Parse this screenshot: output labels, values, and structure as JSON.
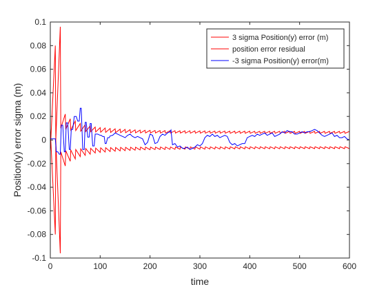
{
  "chart_data": {
    "type": "line",
    "title": "",
    "xlabel": "time",
    "ylabel": "Position(y) error sigma (m)",
    "xlim": [
      0,
      600
    ],
    "ylim": [
      -0.1,
      0.1
    ],
    "xticks": [
      0,
      100,
      200,
      300,
      400,
      500,
      600
    ],
    "xtick_labels": [
      "0",
      "100",
      "200",
      "300",
      "400",
      "500",
      "600"
    ],
    "yticks": [
      -0.1,
      -0.08,
      -0.06,
      -0.04,
      -0.02,
      0,
      0.02,
      0.04,
      0.06,
      0.08,
      0.1
    ],
    "ytick_labels": [
      "-0.1",
      "-0.08",
      "-0.06",
      "-0.04",
      "-0.02",
      "0",
      "0.02",
      "0.04",
      "0.06",
      "0.08",
      "0.1"
    ],
    "grid": false,
    "legend_position": "top-right",
    "series": [
      {
        "name": "3 sigma Position(y) error (m)",
        "color": "#ff0000",
        "x": [
          0,
          1,
          10,
          11,
          20,
          21,
          30,
          31,
          40,
          41,
          50,
          51,
          60,
          61,
          70,
          71,
          80,
          81,
          90,
          91,
          100,
          101,
          110,
          111,
          120,
          121,
          130,
          131,
          140,
          141,
          150,
          151,
          160,
          161,
          170,
          171,
          180,
          181,
          190,
          191,
          200,
          201,
          210,
          211,
          220,
          221,
          230,
          231,
          240,
          241,
          250,
          251,
          260,
          261,
          270,
          271,
          280,
          281,
          290,
          291,
          300,
          301,
          310,
          311,
          320,
          321,
          330,
          331,
          340,
          341,
          350,
          351,
          360,
          361,
          370,
          371,
          380,
          381,
          390,
          391,
          400,
          401,
          410,
          411,
          420,
          421,
          430,
          431,
          440,
          441,
          450,
          451,
          460,
          461,
          470,
          471,
          480,
          481,
          490,
          491,
          500,
          501,
          510,
          511,
          520,
          521,
          530,
          531,
          540,
          541,
          550,
          551,
          560,
          561,
          570,
          571,
          580,
          581,
          590,
          591,
          600
        ],
        "y": [
          0.01,
          0,
          0.08,
          0,
          0.096,
          0.01,
          0.022,
          0.009,
          0.018,
          0.0085,
          0.016,
          0.008,
          0.014,
          0.0075,
          0.013,
          0.0072,
          0.012,
          0.007,
          0.011,
          0.0068,
          0.0105,
          0.0066,
          0.0102,
          0.0065,
          0.0098,
          0.0064,
          0.0095,
          0.0063,
          0.0092,
          0.0062,
          0.009,
          0.0062,
          0.0088,
          0.0061,
          0.0086,
          0.0061,
          0.0084,
          0.006,
          0.0083,
          0.006,
          0.0082,
          0.006,
          0.0081,
          0.006,
          0.008,
          0.0059,
          0.008,
          0.0059,
          0.0079,
          0.0059,
          0.0079,
          0.0059,
          0.0078,
          0.0059,
          0.0078,
          0.0058,
          0.0078,
          0.0058,
          0.0077,
          0.0058,
          0.0077,
          0.0058,
          0.0077,
          0.0058,
          0.0076,
          0.0058,
          0.0076,
          0.0058,
          0.0076,
          0.0058,
          0.0076,
          0.0058,
          0.0075,
          0.0057,
          0.0075,
          0.0057,
          0.0075,
          0.0057,
          0.0075,
          0.0057,
          0.0075,
          0.0057,
          0.0074,
          0.0057,
          0.0074,
          0.0057,
          0.0074,
          0.0057,
          0.0074,
          0.0057,
          0.0074,
          0.0057,
          0.0074,
          0.0057,
          0.0074,
          0.0057,
          0.0073,
          0.0057,
          0.0073,
          0.0057,
          0.0073,
          0.0057,
          0.0073,
          0.0057,
          0.0073,
          0.0057,
          0.0073,
          0.0057,
          0.0073,
          0.0057,
          0.0073,
          0.0057,
          0.0073,
          0.0057,
          0.0073,
          0.0057,
          0.0073,
          0.0057,
          0.0073,
          0.0057,
          0.0073
        ]
      },
      {
        "name": "position error residual",
        "color": "#ff0000",
        "x": [
          0,
          1,
          10,
          11,
          20,
          21,
          30,
          31,
          40,
          41,
          50,
          51,
          60,
          61,
          70,
          71,
          80,
          81,
          90,
          91,
          100,
          101,
          110,
          111,
          120,
          121,
          130,
          131,
          140,
          141,
          150,
          151,
          160,
          161,
          170,
          171,
          180,
          181,
          190,
          191,
          200,
          201,
          210,
          211,
          220,
          221,
          230,
          231,
          240,
          241,
          250,
          251,
          260,
          261,
          270,
          271,
          280,
          281,
          290,
          291,
          300,
          301,
          310,
          311,
          320,
          321,
          330,
          331,
          340,
          341,
          350,
          351,
          360,
          361,
          370,
          371,
          380,
          381,
          390,
          391,
          400,
          401,
          410,
          411,
          420,
          421,
          430,
          431,
          440,
          441,
          450,
          451,
          460,
          461,
          470,
          471,
          480,
          481,
          490,
          491,
          500,
          501,
          510,
          511,
          520,
          521,
          530,
          531,
          540,
          541,
          550,
          551,
          560,
          561,
          570,
          571,
          580,
          581,
          590,
          591,
          600
        ],
        "y": [
          -0.01,
          0,
          -0.08,
          0,
          -0.096,
          -0.01,
          -0.022,
          -0.009,
          -0.018,
          -0.0085,
          -0.016,
          -0.008,
          -0.014,
          -0.0075,
          -0.013,
          -0.0072,
          -0.012,
          -0.007,
          -0.011,
          -0.0068,
          -0.0105,
          -0.0066,
          -0.0102,
          -0.0065,
          -0.0098,
          -0.0064,
          -0.0095,
          -0.0063,
          -0.0092,
          -0.0062,
          -0.009,
          -0.0062,
          -0.0088,
          -0.0061,
          -0.0086,
          -0.0061,
          -0.0084,
          -0.006,
          -0.0083,
          -0.006,
          -0.0082,
          -0.006,
          -0.0081,
          -0.006,
          -0.008,
          -0.0059,
          -0.008,
          -0.0059,
          -0.0079,
          -0.0059,
          -0.0079,
          -0.0059,
          -0.0078,
          -0.0059,
          -0.0078,
          -0.0058,
          -0.0078,
          -0.0058,
          -0.0077,
          -0.0058,
          -0.0077,
          -0.0058,
          -0.0077,
          -0.0058,
          -0.0076,
          -0.0058,
          -0.0076,
          -0.0058,
          -0.0076,
          -0.0058,
          -0.0076,
          -0.0058,
          -0.0075,
          -0.0057,
          -0.0075,
          -0.0057,
          -0.0075,
          -0.0057,
          -0.0075,
          -0.0057,
          -0.0075,
          -0.0057,
          -0.0074,
          -0.0057,
          -0.0074,
          -0.0057,
          -0.0074,
          -0.0057,
          -0.0074,
          -0.0057,
          -0.0074,
          -0.0057,
          -0.0074,
          -0.0057,
          -0.0074,
          -0.0057,
          -0.0073,
          -0.0057,
          -0.0073,
          -0.0057,
          -0.0073,
          -0.0057,
          -0.0073,
          -0.0057,
          -0.0073,
          -0.0057,
          -0.0073,
          -0.0057,
          -0.0073,
          -0.0057,
          -0.0073,
          -0.0057,
          -0.0073,
          -0.0057,
          -0.0073,
          -0.0057,
          -0.0073,
          -0.0057,
          -0.0073,
          -0.0057,
          -0.0073
        ]
      },
      {
        "name": "-3 sigma Position(y) error(m)",
        "color": "#0000ff",
        "x": [
          0,
          2,
          5,
          8,
          10,
          12,
          15,
          18,
          20,
          22,
          25,
          28,
          30,
          32,
          35,
          38,
          40,
          42,
          45,
          48,
          52,
          55,
          58,
          60,
          62,
          65,
          68,
          70,
          72,
          75,
          78,
          80,
          82,
          85,
          88,
          90,
          95,
          100,
          102,
          105,
          108,
          110,
          112,
          115,
          118,
          120,
          125,
          130,
          135,
          140,
          145,
          150,
          155,
          160,
          165,
          170,
          175,
          180,
          185,
          190,
          195,
          200,
          205,
          210,
          215,
          220,
          225,
          230,
          235,
          240,
          242,
          245,
          250,
          255,
          260,
          265,
          270,
          275,
          280,
          285,
          290,
          295,
          300,
          305,
          310,
          315,
          320,
          325,
          330,
          335,
          340,
          345,
          350,
          355,
          360,
          365,
          370,
          375,
          380,
          385,
          390,
          395,
          400,
          405,
          410,
          415,
          420,
          425,
          430,
          435,
          440,
          445,
          450,
          455,
          460,
          465,
          470,
          475,
          480,
          485,
          490,
          495,
          500,
          505,
          510,
          515,
          520,
          525,
          530,
          535,
          540,
          545,
          550,
          555,
          560,
          565,
          570,
          575,
          580,
          585,
          590,
          595,
          600
        ],
        "y": [
          0.001,
          0.001,
          0.001,
          0.001,
          0.001,
          -0.01,
          -0.01,
          -0.012,
          -0.012,
          0.0125,
          0.0125,
          -0.01,
          -0.01,
          0.0145,
          0.0145,
          -0.008,
          -0.008,
          0.009,
          0.009,
          0.02,
          0.02,
          0.016,
          0.016,
          0.027,
          0.027,
          -0.008,
          -0.008,
          0.015,
          0.015,
          0.0025,
          0.0025,
          0.014,
          0.014,
          -0.005,
          -0.005,
          0.005,
          0.005,
          0.004,
          0.004,
          0.003,
          0.003,
          -0.003,
          -0.003,
          0.002,
          0.002,
          0.0035,
          0.004,
          0.006,
          0.005,
          0.004,
          0.003,
          0.002,
          0.004,
          0.005,
          0.003,
          0.002,
          0.003,
          0.002,
          0.001,
          -0.004,
          -0.002,
          0.005,
          0.004,
          -0.003,
          -0.002,
          0.003,
          0.005,
          0.004,
          0.006,
          0.007,
          0.0085,
          -0.004,
          -0.003,
          -0.006,
          -0.005,
          -0.007,
          -0.007,
          -0.006,
          -0.008,
          -0.007,
          -0.006,
          -0.004,
          -0.005,
          -0.003,
          0.002,
          0.004,
          0.003,
          0.005,
          0.003,
          0.004,
          0.002,
          0.003,
          0.004,
          0.003,
          -0.002,
          -0.004,
          -0.003,
          -0.005,
          -0.004,
          -0.003,
          -0.003,
          0.002,
          0.003,
          0.004,
          0.003,
          0.005,
          0.004,
          0.005,
          0.006,
          0.004,
          0.005,
          0.006,
          0.003,
          0.004,
          0.005,
          0.007,
          0.006,
          0.008,
          0.007,
          0.007,
          0.005,
          0.005,
          0.006,
          0.007,
          0.006,
          0.007,
          0.007,
          0.008,
          0.009,
          0.008,
          0.006,
          0.004,
          0.003,
          0.004,
          0.005,
          0.006,
          0.003,
          0.004,
          0.002,
          0.002,
          0.003,
          0.001,
          0.0
        ]
      }
    ]
  }
}
